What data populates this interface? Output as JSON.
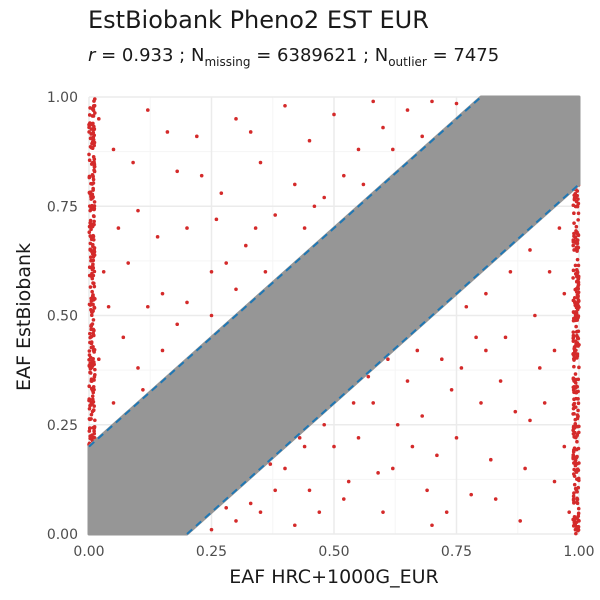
{
  "chart_data": {
    "type": "scatter",
    "title": "EstBiobank Pheno2 EST EUR",
    "subtitle": {
      "r_symbol": "r",
      "r_text": " = 0.933 ; N",
      "missing_sub": "missing",
      "missing_text": " = 6389621 ; N",
      "outlier_sub": "outlier",
      "outlier_text": " = 7475"
    },
    "xlabel": "EAF HRC+1000G_EUR",
    "ylabel": "EAF EstBiobank",
    "xlim": [
      0,
      1
    ],
    "ylim": [
      0,
      1
    ],
    "x_ticks": [
      {
        "value": 0,
        "label": "0.00"
      },
      {
        "value": 0.25,
        "label": "0.25"
      },
      {
        "value": 0.5,
        "label": "0.50"
      },
      {
        "value": 0.75,
        "label": "0.75"
      },
      {
        "value": 1,
        "label": "1.00"
      }
    ],
    "y_ticks": [
      {
        "value": 0,
        "label": "0.00"
      },
      {
        "value": 0.25,
        "label": "0.25"
      },
      {
        "value": 0.5,
        "label": "0.50"
      },
      {
        "value": 0.75,
        "label": "0.75"
      },
      {
        "value": 1,
        "label": "1.00"
      }
    ],
    "grid": true,
    "reference_lines": [
      {
        "name": "upper",
        "intercept": 0.2,
        "slope": 1,
        "style": "dashed"
      },
      {
        "name": "lower",
        "intercept": -0.2,
        "slope": 1,
        "style": "dashed"
      }
    ],
    "series": [
      {
        "kind": "band",
        "description": "non-outlier variants within |y - x| <= 0.2",
        "polygon": [
          [
            0,
            0.2
          ],
          [
            0,
            0
          ],
          [
            0.2,
            0
          ],
          [
            1,
            0.8
          ],
          [
            1,
            1
          ],
          [
            0.8,
            1
          ]
        ]
      },
      {
        "kind": "points",
        "description": "outlier variants (|y - x| > 0.2)",
        "points": [
          [
            0.02,
            0.95
          ],
          [
            0.05,
            0.88
          ],
          [
            0.08,
            0.62
          ],
          [
            0.1,
            0.74
          ],
          [
            0.12,
            0.97
          ],
          [
            0.15,
            0.55
          ],
          [
            0.18,
            0.83
          ],
          [
            0.2,
            0.7
          ],
          [
            0.22,
            0.91
          ],
          [
            0.25,
            0.6
          ],
          [
            0.27,
            0.78
          ],
          [
            0.3,
            0.95
          ],
          [
            0.32,
            0.66
          ],
          [
            0.35,
            0.85
          ],
          [
            0.38,
            0.73
          ],
          [
            0.4,
            0.98
          ],
          [
            0.42,
            0.8
          ],
          [
            0.45,
            0.9
          ],
          [
            0.48,
            0.77
          ],
          [
            0.5,
            0.96
          ],
          [
            0.55,
            0.88
          ],
          [
            0.58,
            0.99
          ],
          [
            0.6,
            0.93
          ],
          [
            0.65,
            0.97
          ],
          [
            0.7,
            0.99
          ],
          [
            0.75,
            0.985
          ],
          [
            0.05,
            0.3
          ],
          [
            0.07,
            0.45
          ],
          [
            0.1,
            0.38
          ],
          [
            0.12,
            0.52
          ],
          [
            0.03,
            0.6
          ],
          [
            0.15,
            0.42
          ],
          [
            0.18,
            0.48
          ],
          [
            0.2,
            0.53
          ],
          [
            0.25,
            0.5
          ],
          [
            0.28,
            0.62
          ],
          [
            0.02,
            0.4
          ],
          [
            0.06,
            0.7
          ],
          [
            0.09,
            0.85
          ],
          [
            0.14,
            0.68
          ],
          [
            0.16,
            0.92
          ],
          [
            0.3,
            0.56
          ],
          [
            0.33,
            0.92
          ],
          [
            0.36,
            0.6
          ],
          [
            0.44,
            0.7
          ],
          [
            0.52,
            0.82
          ],
          [
            0.62,
            0.88
          ],
          [
            0.68,
            0.91
          ],
          [
            0.11,
            0.33
          ],
          [
            0.04,
            0.52
          ],
          [
            0.23,
            0.82
          ],
          [
            0.26,
            0.72
          ],
          [
            0.34,
            0.7
          ],
          [
            0.46,
            0.75
          ],
          [
            0.56,
            0.8
          ],
          [
            0.98,
            0.05
          ],
          [
            0.95,
            0.12
          ],
          [
            0.92,
            0.38
          ],
          [
            0.9,
            0.26
          ],
          [
            0.88,
            0.03
          ],
          [
            0.85,
            0.45
          ],
          [
            0.82,
            0.17
          ],
          [
            0.8,
            0.3
          ],
          [
            0.78,
            0.09
          ],
          [
            0.75,
            0.22
          ],
          [
            0.72,
            0.4
          ],
          [
            0.7,
            0.02
          ],
          [
            0.68,
            0.27
          ],
          [
            0.65,
            0.35
          ],
          [
            0.62,
            0.15
          ],
          [
            0.6,
            0.05
          ],
          [
            0.58,
            0.3
          ],
          [
            0.55,
            0.22
          ],
          [
            0.52,
            0.08
          ],
          [
            0.5,
            0.2
          ],
          [
            0.45,
            0.1
          ],
          [
            0.42,
            0.02
          ],
          [
            0.4,
            0.15
          ],
          [
            0.35,
            0.05
          ],
          [
            0.3,
            0.03
          ],
          [
            0.25,
            0.01
          ],
          [
            0.97,
            0.55
          ],
          [
            0.94,
            0.6
          ],
          [
            0.96,
            0.7
          ],
          [
            0.93,
            0.3
          ],
          [
            0.91,
            0.5
          ],
          [
            0.89,
            0.15
          ],
          [
            0.86,
            0.6
          ],
          [
            0.84,
            0.35
          ],
          [
            0.81,
            0.55
          ],
          [
            0.79,
            0.45
          ],
          [
            0.77,
            0.52
          ],
          [
            0.74,
            0.33
          ],
          [
            0.71,
            0.18
          ],
          [
            0.67,
            0.42
          ],
          [
            0.63,
            0.25
          ],
          [
            0.57,
            0.36
          ],
          [
            0.53,
            0.12
          ],
          [
            0.48,
            0.25
          ],
          [
            0.44,
            0.2
          ],
          [
            0.38,
            0.1
          ],
          [
            0.33,
            0.07
          ],
          [
            0.99,
            0.35
          ],
          [
            0.99,
            0.65
          ],
          [
            0.97,
            0.2
          ],
          [
            0.9,
            0.65
          ],
          [
            0.87,
            0.28
          ],
          [
            0.83,
            0.08
          ],
          [
            0.76,
            0.38
          ],
          [
            0.69,
            0.1
          ],
          [
            0.61,
            0.4
          ],
          [
            0.54,
            0.3
          ],
          [
            0.47,
            0.05
          ],
          [
            0.43,
            0.22
          ],
          [
            0.37,
            0.16
          ],
          [
            0.28,
            0.06
          ],
          [
            0.81,
            0.42
          ],
          [
            0.66,
            0.2
          ],
          [
            0.59,
            0.14
          ],
          [
            0.73,
            0.05
          ],
          [
            0.95,
            0.42
          ]
        ]
      },
      {
        "kind": "edge_cluster",
        "description": "outliers along x = 0",
        "x_range": [
          0,
          0.012
        ],
        "y_range": [
          0.2,
          1
        ]
      },
      {
        "kind": "edge_cluster",
        "description": "outliers along x = 1",
        "x_range": [
          0.988,
          1
        ],
        "y_range": [
          0,
          0.8
        ]
      }
    ]
  },
  "colors": {
    "outlier": "#d42a2a",
    "band": "#969696",
    "reference_line": "#1f77b4",
    "grid_major": "#ebebeb",
    "grid_minor": "#f5f5f5",
    "tick_label": "#4d4d4d"
  }
}
